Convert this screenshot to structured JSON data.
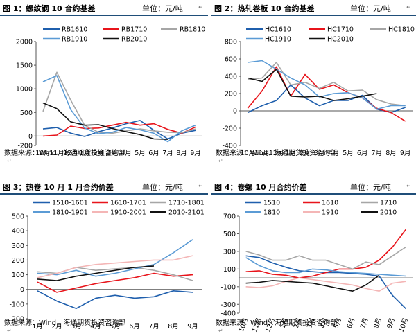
{
  "colors": {
    "rule": "#1f4e79",
    "blue": "#1f5fad",
    "red": "#e8141b",
    "gray": "#a6a6a6",
    "lightblue": "#5b9bd5",
    "pink": "#f4b6b6",
    "black": "#111111"
  },
  "return_glyph": "↵",
  "anchor_glyph": "↵",
  "charts": [
    {
      "title": "图 1：螺纹钢 10 合约基差",
      "unit": "单位：元/吨",
      "source": "数据来源：Wind、海通期货投资咨询部",
      "chart_data": {
        "type": "line",
        "x": [
          "10月",
          "11月",
          "12月",
          "1月",
          "2月",
          "3月",
          "4月",
          "5月",
          "6月",
          "7月",
          "8月",
          "9月"
        ],
        "ylim": [
          -200,
          2000
        ],
        "yticks": [
          -200,
          0,
          500,
          1000,
          1500,
          2000
        ],
        "legend": "top",
        "grid": false,
        "series": [
          {
            "name": "RB1610",
            "color": "#1f5fad",
            "values": [
              150,
              180,
              60,
              -10,
              90,
              170,
              260,
              330,
              120,
              -60,
              60,
              120
            ]
          },
          {
            "name": "RB1710",
            "color": "#e8141b",
            "values": [
              0,
              20,
              210,
              160,
              170,
              230,
              290,
              230,
              260,
              140,
              60,
              190
            ]
          },
          {
            "name": "RB1810",
            "color": "#a6a6a6",
            "values": [
              520,
              1350,
              760,
              230,
              80,
              60,
              110,
              150,
              110,
              80,
              70,
              150
            ]
          },
          {
            "name": "RB1910",
            "color": "#5b9bd5",
            "values": [
              1150,
              1280,
              560,
              170,
              50,
              80,
              180,
              130,
              60,
              -120,
              110,
              230
            ]
          },
          {
            "name": "RB2010",
            "color": "#111111",
            "values": [
              700,
              580,
              300,
              230,
              240,
              160,
              90,
              30,
              -60,
              -70,
              null,
              null
            ]
          }
        ]
      }
    },
    {
      "title": "图 2：热轧卷板 10 合约基差",
      "unit": "单位：元/吨",
      "source": "数据来源：Wind、海通期货投资咨询部",
      "chart_data": {
        "type": "line",
        "x": [
          "10月",
          "11月",
          "12月",
          "1月",
          "2月",
          "3月",
          "4月",
          "5月",
          "6月",
          "7月",
          "8月",
          "9月"
        ],
        "ylim": [
          -400,
          800
        ],
        "yticks": [
          -400,
          -200,
          0,
          200,
          400,
          600,
          800
        ],
        "legend": "top",
        "grid": false,
        "series": [
          {
            "name": "HC1610",
            "color": "#1f5fad",
            "values": [
              -20,
              60,
              120,
              300,
              150,
              60,
              120,
              120,
              180,
              20,
              -20,
              40
            ]
          },
          {
            "name": "HC1710",
            "color": "#e8141b",
            "values": [
              30,
              230,
              510,
              170,
              420,
              250,
              300,
              210,
              150,
              30,
              -20,
              -120
            ]
          },
          {
            "name": "HC1810",
            "color": "#a6a6a6",
            "values": [
              360,
              380,
              560,
              300,
              330,
              260,
              330,
              230,
              240,
              130,
              80,
              60
            ]
          },
          {
            "name": "HC1910",
            "color": "#5b9bd5",
            "values": [
              560,
              580,
              480,
              380,
              300,
              160,
              200,
              210,
              150,
              20,
              60,
              60
            ]
          },
          {
            "name": "HC2010",
            "color": "#111111",
            "values": [
              380,
              340,
              480,
              170,
              160,
              170,
              120,
              140,
              170,
              200,
              null,
              null
            ]
          }
        ]
      }
    },
    {
      "title": "图 3：热卷 10 月 1 月合约价差",
      "unit": "单位：元/吨",
      "source": "数据来源：Wind、海通期货投资咨询部",
      "chart_data": {
        "type": "line",
        "x": [
          "1月",
          "2月",
          "3月",
          "4月",
          "5月",
          "6月",
          "7月",
          "8月",
          "9月"
        ],
        "ylim": [
          -200,
          500
        ],
        "yticks": [
          -200,
          -100,
          0,
          100,
          200,
          300,
          400,
          500
        ],
        "legend": "top",
        "grid": false,
        "series": [
          {
            "name": "1510-1601",
            "color": "#1f5fad",
            "values": [
              -10,
              -80,
              -130,
              -60,
              -40,
              -60,
              -50,
              -10,
              -20
            ]
          },
          {
            "name": "1610-1701",
            "color": "#e8141b",
            "values": [
              50,
              -20,
              10,
              40,
              60,
              80,
              110,
              90,
              100
            ]
          },
          {
            "name": "1710-1801",
            "color": "#a6a6a6",
            "values": [
              120,
              110,
              150,
              130,
              140,
              150,
              130,
              100,
              60
            ]
          },
          {
            "name": "1810-1901",
            "color": "#5b9bd5",
            "values": [
              110,
              100,
              130,
              90,
              110,
              140,
              170,
              250,
              340
            ]
          },
          {
            "name": "1910-2001",
            "color": "#f4b6b6",
            "values": [
              80,
              110,
              150,
              170,
              180,
              190,
              200,
              200,
              230
            ]
          },
          {
            "name": "2010-2101",
            "color": "#111111",
            "values": [
              70,
              60,
              90,
              110,
              130,
              150,
              160,
              null,
              null
            ]
          }
        ]
      }
    },
    {
      "title": "图 4：卷螺 10 月合约价差",
      "unit": "单位：元/吨",
      "source": "数据来源：Wind、海通期货投资咨询部",
      "chart_data": {
        "type": "line",
        "x": [
          "10月",
          "11月",
          "12月",
          "1月",
          "2月",
          "3月",
          "4月",
          "5月",
          "6月",
          "7月",
          "8月",
          "9月",
          "10月"
        ],
        "ylim": [
          -400,
          700
        ],
        "yticks": [
          -400,
          -300,
          -100,
          100,
          300,
          500,
          700
        ],
        "legend": "top",
        "grid": false,
        "series": [
          {
            "name": "1510",
            "color": "#1f5fad",
            "values": [
              250,
              230,
              170,
              120,
              80,
              70,
              60,
              60,
              50,
              40,
              20,
              -200,
              -350
            ]
          },
          {
            "name": "1610",
            "color": "#e8141b",
            "values": [
              70,
              80,
              40,
              30,
              0,
              20,
              60,
              100,
              100,
              120,
              200,
              350,
              550
            ]
          },
          {
            "name": "1710",
            "color": "#a6a6a6",
            "values": [
              300,
              260,
              200,
              200,
              250,
              200,
              200,
              150,
              100,
              180,
              150,
              250,
              350
            ]
          },
          {
            "name": "1810",
            "color": "#5b9bd5",
            "values": [
              230,
              140,
              80,
              60,
              60,
              100,
              90,
              70,
              60,
              50,
              40,
              30,
              20
            ]
          },
          {
            "name": "1910",
            "color": "#f4b6b6",
            "values": [
              -100,
              -110,
              -90,
              -40,
              0,
              -20,
              -40,
              -60,
              -80,
              -120,
              -150,
              -60,
              -40
            ]
          },
          {
            "name": "2010",
            "color": "#111111",
            "values": [
              -60,
              -50,
              -30,
              -40,
              -50,
              -60,
              -90,
              -120,
              -150,
              -80,
              30,
              null,
              null
            ]
          }
        ]
      }
    }
  ]
}
